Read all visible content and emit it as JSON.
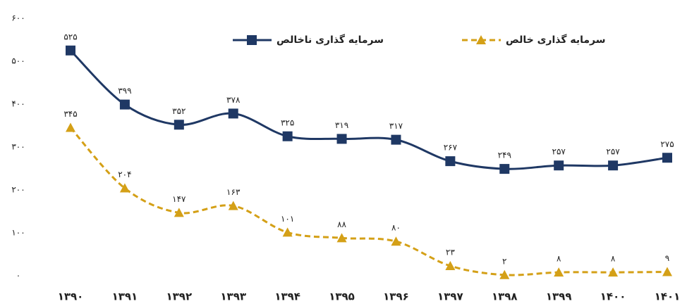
{
  "chart_data": {
    "type": "line",
    "categories": [
      "۱۳۹۰",
      "۱۳۹۱",
      "۱۳۹۲",
      "۱۳۹۳",
      "۱۳۹۴",
      "۱۳۹۵",
      "۱۳۹۶",
      "۱۳۹۷",
      "۱۳۹۸",
      "۱۳۹۹",
      "۱۴۰۰",
      "۱۴۰۱"
    ],
    "series": [
      {
        "name": "سرمایه گذاری ناخالص",
        "color": "#1f3864",
        "dashed": false,
        "marker": "square",
        "values": [
          525,
          399,
          352,
          378,
          325,
          319,
          317,
          267,
          249,
          257,
          257,
          275
        ],
        "value_labels": [
          "۵۲۵",
          "۳۹۹",
          "۳۵۲",
          "۳۷۸",
          "۳۲۵",
          "۳۱۹",
          "۳۱۷",
          "۲۶۷",
          "۲۴۹",
          "۲۵۷",
          "۲۵۷",
          "۲۷۵"
        ]
      },
      {
        "name": "سرمایه گذاری خالص",
        "color": "#d4a017",
        "dashed": true,
        "marker": "triangle",
        "values": [
          345,
          204,
          147,
          163,
          101,
          88,
          80,
          23,
          2,
          8,
          8,
          9
        ],
        "value_labels": [
          "۳۴۵",
          "۲۰۴",
          "۱۴۷",
          "۱۶۳",
          "۱۰۱",
          "۸۸",
          "۸۰",
          "۲۳",
          "۲",
          "۸",
          "۸",
          "۹"
        ]
      }
    ],
    "ylim": [
      0,
      600
    ],
    "yticks": [
      {
        "value": 0,
        "label": "۰"
      },
      {
        "value": 100,
        "label": "۱۰۰"
      },
      {
        "value": 200,
        "label": "۲۰۰"
      },
      {
        "value": 300,
        "label": "۳۰۰"
      },
      {
        "value": 400,
        "label": "۴۰۰"
      },
      {
        "value": 500,
        "label": "۵۰۰"
      },
      {
        "value": 600,
        "label": "۶۰۰"
      }
    ],
    "grid": false,
    "legend": "top"
  }
}
